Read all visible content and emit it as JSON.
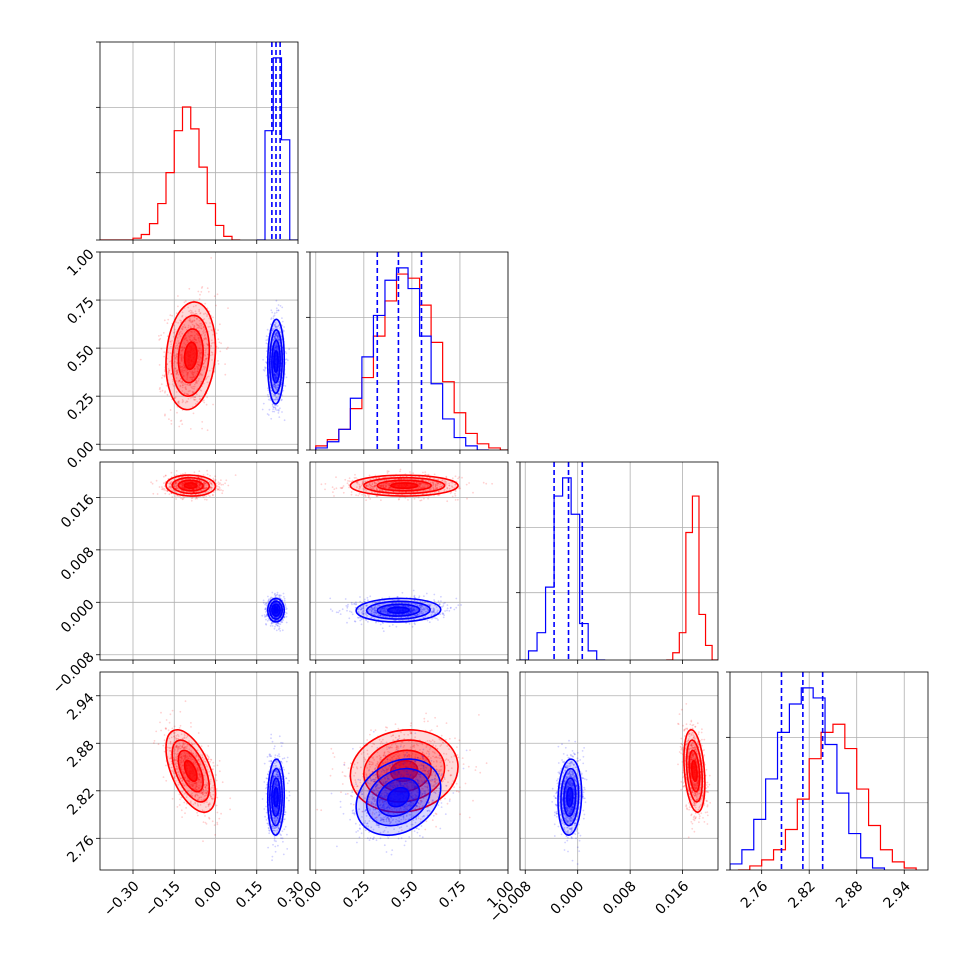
{
  "chart_data": {
    "type": "corner",
    "grid": true,
    "colors": {
      "series_a": "#ff0000",
      "series_b": "#0000ff"
    },
    "params": [
      {
        "ticks": [
          "−0.30",
          "−0.15",
          "0.00",
          "0.15",
          "0.30"
        ],
        "tick_values": [
          -0.3,
          -0.15,
          0.0,
          0.15,
          0.3
        ],
        "range": [
          -0.42,
          0.3
        ]
      },
      {
        "ticks": [
          "0.00",
          "0.25",
          "0.50",
          "0.75",
          "1.00"
        ],
        "tick_values": [
          0.0,
          0.25,
          0.5,
          0.75,
          1.0
        ],
        "range": [
          -0.03,
          1.0
        ]
      },
      {
        "ticks": [
          "−0.008",
          "0.000",
          "0.008",
          "0.016"
        ],
        "tick_values": [
          -0.008,
          0.0,
          0.008,
          0.016
        ],
        "range": [
          -0.0088,
          0.0214
        ]
      },
      {
        "ticks": [
          "2.76",
          "2.82",
          "2.88",
          "2.94"
        ],
        "tick_values": [
          2.76,
          2.82,
          2.88,
          2.94
        ],
        "range": [
          2.72,
          2.97
        ]
      }
    ],
    "series": [
      {
        "color": "#ff0000",
        "means": [
          -0.09,
          0.46,
          0.0178,
          2.845
        ],
        "stds": [
          0.045,
          0.14,
          0.0008,
          0.026
        ],
        "correlations": {
          "0-1": 0.15,
          "0-2": -0.05,
          "0-3": -0.55,
          "1-2": 0.0,
          "1-3": 0.1,
          "2-3": -0.3
        },
        "histograms": [
          {
            "edges": [
              -0.42,
              -0.3,
              -0.27,
              -0.24,
              -0.21,
              -0.18,
              -0.15,
              -0.12,
              -0.09,
              -0.06,
              -0.03,
              0.0,
              0.03,
              0.06,
              0.09
            ],
            "counts": [
              0,
              1,
              3,
              9,
              20,
              37,
              60,
              73,
              61,
              40,
              20,
              8,
              2,
              0
            ]
          },
          {
            "edges": [
              0.0,
              0.06,
              0.12,
              0.18,
              0.24,
              0.3,
              0.36,
              0.42,
              0.48,
              0.54,
              0.6,
              0.66,
              0.72,
              0.78,
              0.84,
              0.9,
              0.96,
              1.0
            ],
            "counts": [
              2,
              5,
              10,
              20,
              35,
              55,
              72,
              85,
              83,
              70,
              52,
              33,
              18,
              8,
              3,
              1,
              0
            ]
          },
          {
            "edges": [
              0.0135,
              0.0145,
              0.0155,
              0.0165,
              0.0175,
              0.0185,
              0.0195,
              0.0205,
              0.0214
            ],
            "counts": [
              0,
              4,
              15,
              70,
              90,
              25,
              8,
              0
            ]
          },
          {
            "edges": [
              2.73,
              2.745,
              2.76,
              2.775,
              2.79,
              2.805,
              2.82,
              2.835,
              2.85,
              2.865,
              2.88,
              2.895,
              2.91,
              2.925,
              2.94,
              2.955
            ],
            "counts": [
              0,
              2,
              5,
              10,
              20,
              35,
              55,
              68,
              72,
              60,
              40,
              22,
              10,
              4,
              1
            ]
          }
        ]
      },
      {
        "color": "#0000ff",
        "means": [
          0.22,
          0.43,
          -0.0012,
          2.812
        ],
        "stds": [
          0.015,
          0.11,
          0.0009,
          0.024
        ],
        "correlations": {
          "0-1": 0.05,
          "0-2": 0.0,
          "0-3": 0.05,
          "1-2": 0.05,
          "1-3": 0.25,
          "2-3": 0.1
        },
        "quantiles": [
          [
            0.205,
            0.22,
            0.235
          ],
          [
            0.32,
            0.43,
            0.55
          ],
          [
            -0.0036,
            -0.0014,
            0.0007
          ],
          [
            2.785,
            2.812,
            2.837
          ]
        ],
        "histograms": [
          {
            "edges": [
              0.15,
              0.18,
              0.21,
              0.24,
              0.27,
              0.3
            ],
            "counts": [
              0,
              60,
              100,
              55,
              0
            ]
          },
          {
            "edges": [
              0.0,
              0.06,
              0.12,
              0.18,
              0.24,
              0.3,
              0.36,
              0.42,
              0.48,
              0.54,
              0.6,
              0.66,
              0.72,
              0.78,
              0.84,
              0.9
            ],
            "counts": [
              1,
              4,
              10,
              25,
              45,
              65,
              82,
              88,
              78,
              55,
              32,
              15,
              6,
              2,
              0
            ]
          },
          {
            "edges": [
              -0.0088,
              -0.0075,
              -0.0062,
              -0.0049,
              -0.0036,
              -0.0023,
              -0.001,
              0.0003,
              0.0016,
              0.0029,
              0.0042
            ],
            "counts": [
              0,
              5,
              15,
              40,
              90,
              100,
              80,
              20,
              5,
              0
            ]
          },
          {
            "edges": [
              2.72,
              2.735,
              2.75,
              2.765,
              2.78,
              2.795,
              2.81,
              2.825,
              2.84,
              2.855,
              2.87,
              2.885,
              2.9,
              2.915
            ],
            "counts": [
              3,
              10,
              25,
              45,
              68,
              82,
              90,
              85,
              62,
              38,
              18,
              6,
              1
            ]
          }
        ]
      }
    ]
  }
}
